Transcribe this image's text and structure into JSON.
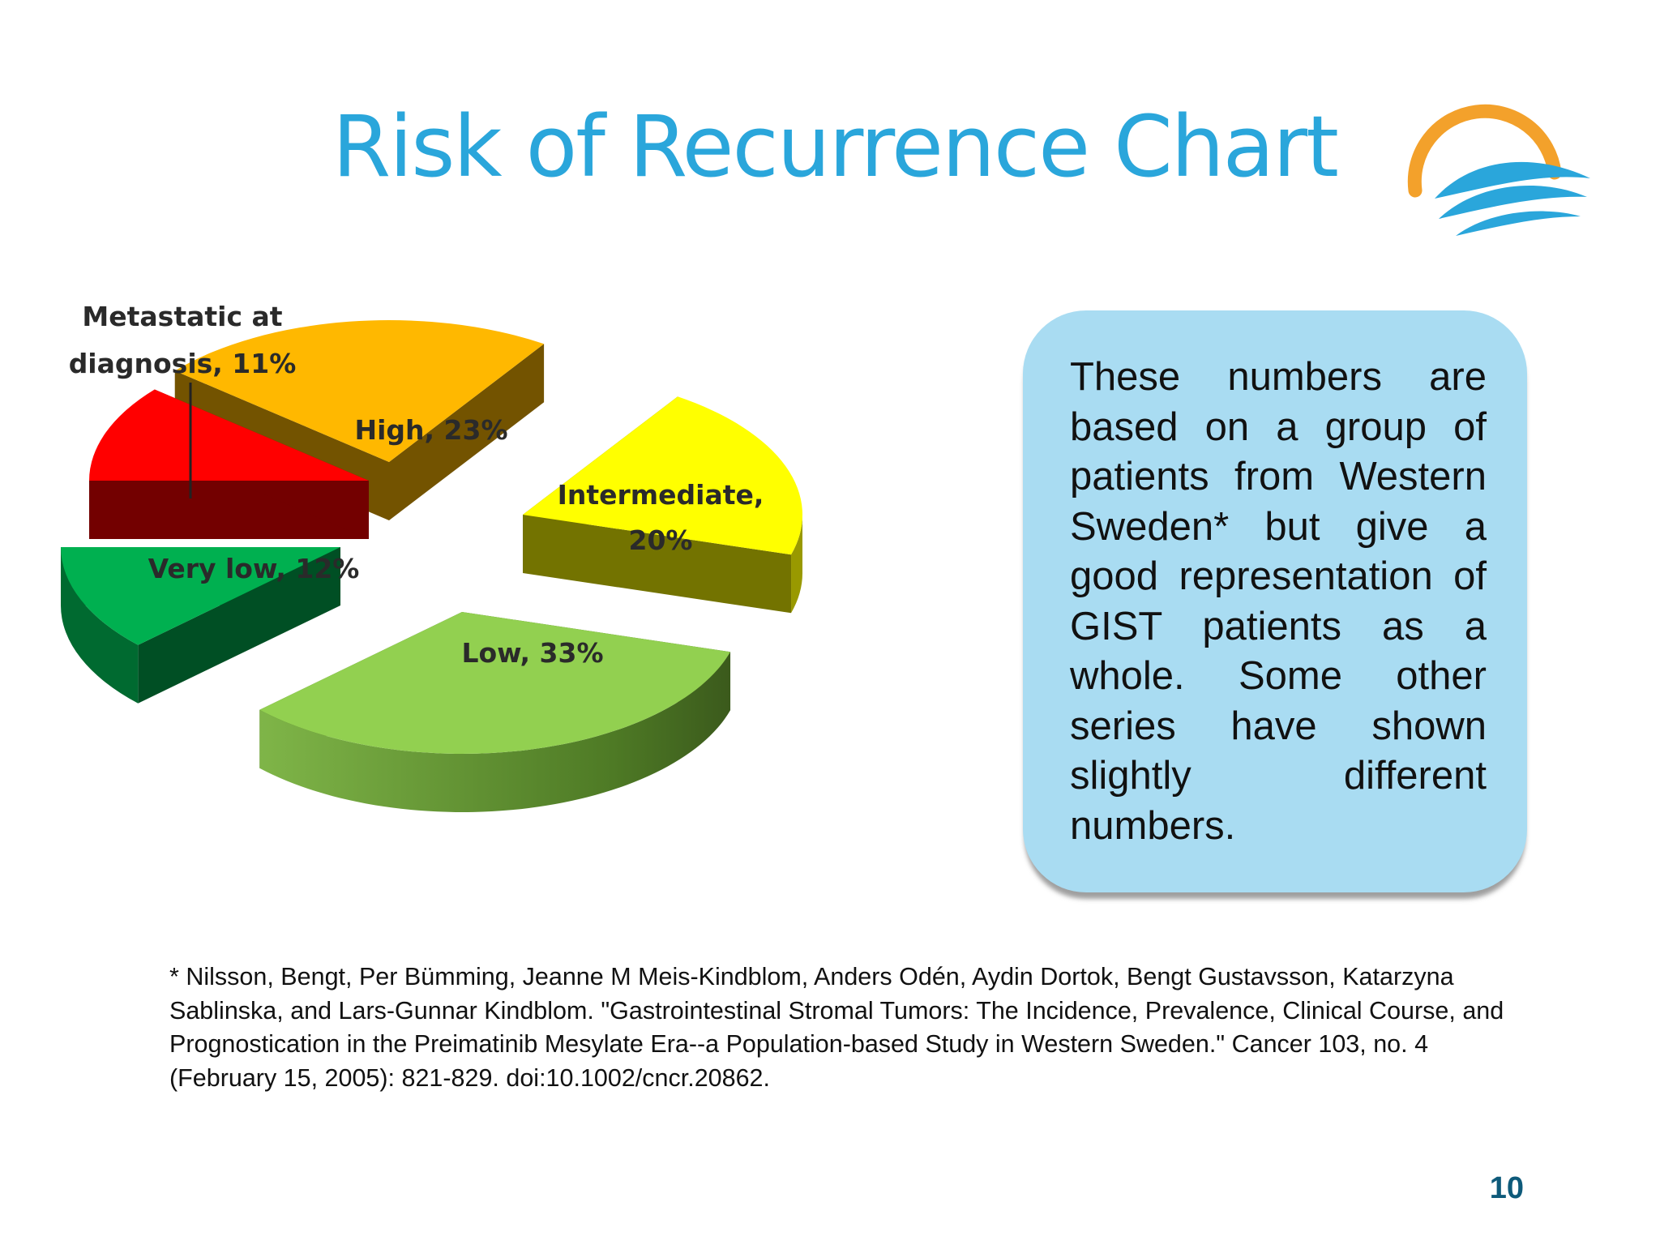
{
  "slide": {
    "title": "Risk of Recurrence Chart",
    "page_number": "10",
    "colors": {
      "title": "#2aa6db",
      "page_number": "#0e5a7a",
      "info_box": "#a9dcf2"
    }
  },
  "logo": {
    "icon": "sun-waves-logo-icon",
    "colors": {
      "sun": "#f3a12b",
      "waves": "#2aa6db"
    }
  },
  "info_box": {
    "text": "These numbers are based on a group of patients from Western Sweden* but give a good representation of GIST patients as a whole. Some other series have shown slightly different numbers."
  },
  "footnote": {
    "text": "* Nilsson, Bengt, Per Bümming, Jeanne M Meis-Kindblom, Anders Odén, Aydin Dortok, Bengt Gustavsson, Katarzyna Sablinska, and Lars-Gunnar Kindblom. \"Gastrointestinal Stromal Tumors: The Incidence, Prevalence, Clinical Course, and Prognostication in the Preimatinib Mesylate Era--a Population-based Study in Western Sweden.\" Cancer 103, no. 4 (February 15, 2005): 821-829. doi:10.1002/cncr.20862."
  },
  "chart_data": {
    "type": "pie",
    "style": "3d-exploded",
    "title": "",
    "slices": [
      {
        "name": "Metastatic at diagnosis",
        "value": 11,
        "label_lines": [
          "Metastatic at",
          "diagnosis, 11%"
        ],
        "color": "#ff0000"
      },
      {
        "name": "High",
        "value": 23,
        "label_lines": [
          "High, 23%"
        ],
        "color": "#ffb800"
      },
      {
        "name": "Intermediate",
        "value": 20,
        "label_lines": [
          "Intermediate,",
          "20%"
        ],
        "color": "#ffff00"
      },
      {
        "name": "Low",
        "value": 33,
        "label_lines": [
          "Low, 33%"
        ],
        "color": "#92d050"
      },
      {
        "name": "Very low",
        "value": 12,
        "label_lines": [
          "Very low, 12%"
        ],
        "color": "#00b050"
      }
    ]
  }
}
